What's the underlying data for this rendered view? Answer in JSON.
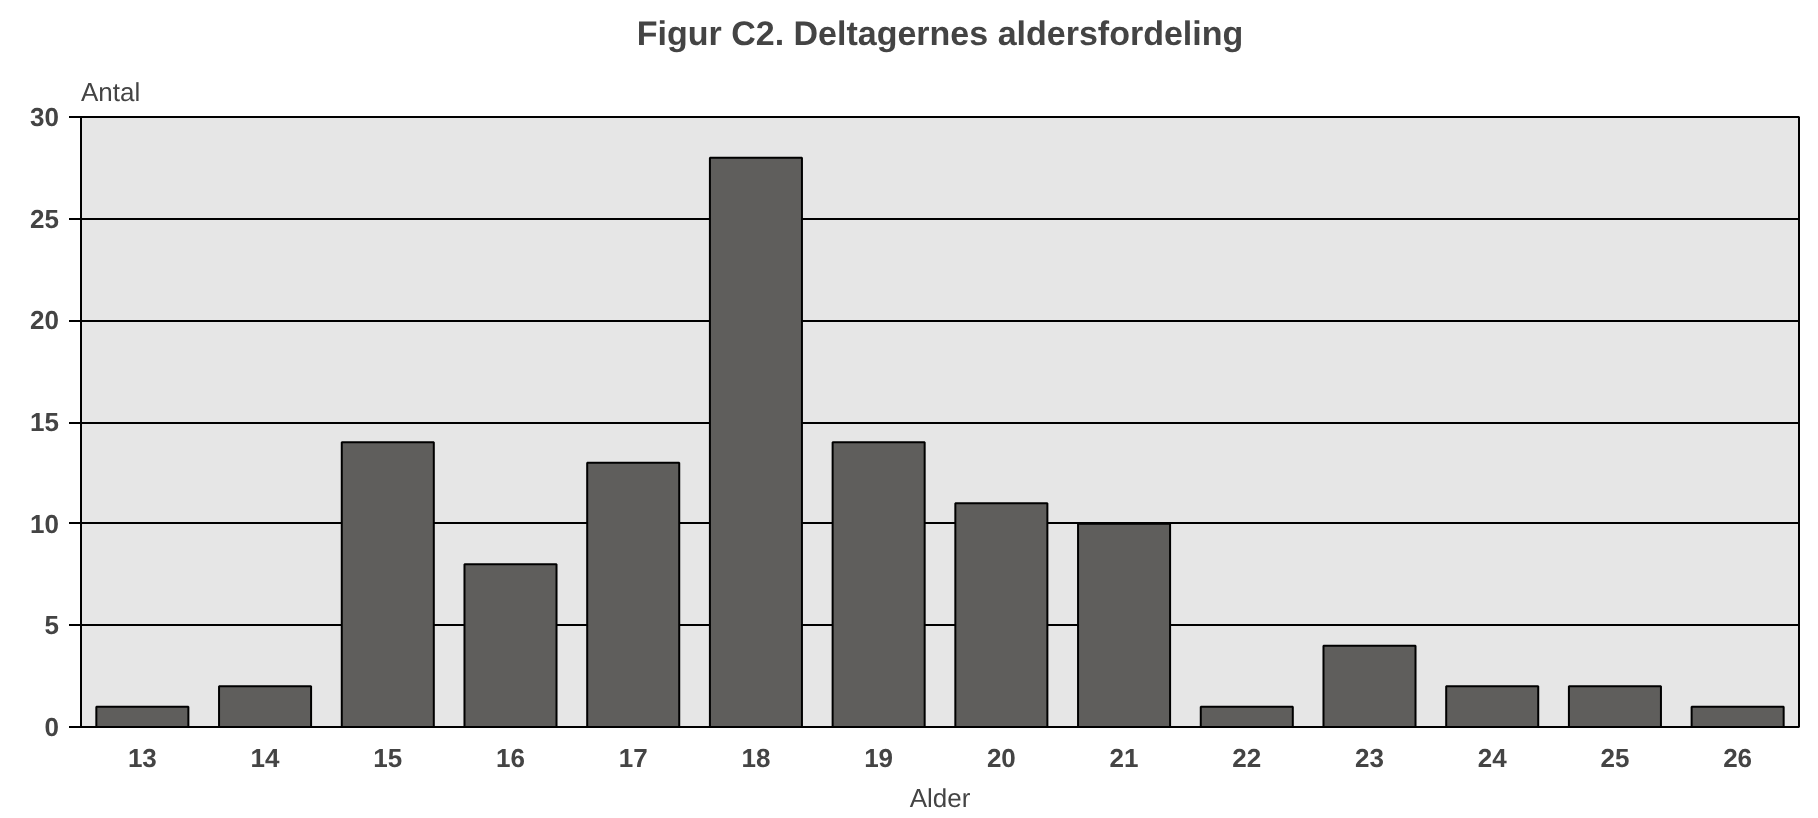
{
  "chart_data": {
    "type": "bar",
    "title": "Figur C2. Deltagernes aldersfordeling",
    "xlabel": "Alder",
    "ylabel": "Antal",
    "categories": [
      "13",
      "14",
      "15",
      "16",
      "17",
      "18",
      "19",
      "20",
      "21",
      "22",
      "23",
      "24",
      "25",
      "26"
    ],
    "values": [
      1,
      2,
      14,
      8,
      13,
      28,
      14,
      11,
      10,
      1,
      4,
      2,
      2,
      1
    ],
    "color": "#5f5e5c",
    "ylim": [
      0,
      30
    ],
    "yticks": [
      0,
      5,
      10,
      15,
      20,
      25,
      30
    ],
    "grid": "y"
  }
}
